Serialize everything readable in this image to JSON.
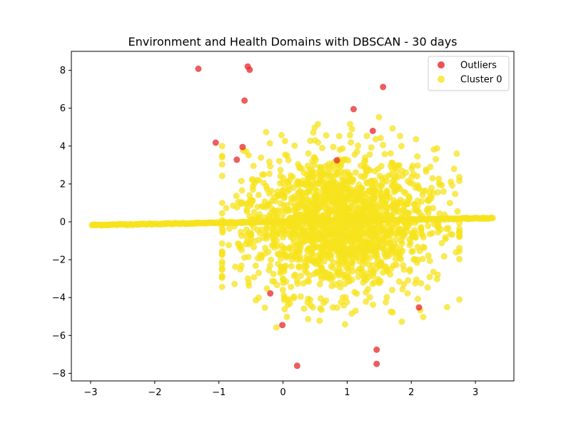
{
  "chart_data": {
    "type": "scatter",
    "title": "Environment and Health Domains with DBSCAN - 30 days",
    "xlabel": "",
    "ylabel": "",
    "xlim": [
      -3.3,
      3.6
    ],
    "ylim": [
      -8.4,
      9.0
    ],
    "x_ticks": [
      "−3",
      "−2",
      "−1",
      "0",
      "1",
      "2",
      "3"
    ],
    "x_tick_values": [
      -3,
      -2,
      -1,
      0,
      1,
      2,
      3
    ],
    "y_ticks": [
      "−8",
      "−6",
      "−4",
      "−2",
      "0",
      "2",
      "4",
      "6",
      "8"
    ],
    "y_tick_values": [
      -8,
      -6,
      -4,
      -2,
      0,
      2,
      4,
      6,
      8
    ],
    "grid": false,
    "legend_position": "top-right",
    "series": [
      {
        "name": "Outliers",
        "color": "#e8262a",
        "points": [
          [
            -1.32,
            8.08
          ],
          [
            -0.55,
            8.2
          ],
          [
            -0.52,
            8.03
          ],
          [
            1.56,
            7.12
          ],
          [
            -0.6,
            6.4
          ],
          [
            1.1,
            5.95
          ],
          [
            1.4,
            4.8
          ],
          [
            -1.05,
            4.18
          ],
          [
            -0.63,
            3.95
          ],
          [
            -0.72,
            3.28
          ],
          [
            0.84,
            3.25
          ],
          [
            -0.2,
            -3.78
          ],
          [
            2.12,
            -4.52
          ],
          [
            -0.01,
            -5.45
          ],
          [
            1.46,
            -6.75
          ],
          [
            1.46,
            -7.5
          ],
          [
            0.22,
            -7.6
          ]
        ]
      },
      {
        "name": "Cluster 0",
        "color": "#f7e31e",
        "line_segment": {
          "x_start": -2.98,
          "y_start": -0.17,
          "x_end": 3.27,
          "y_end": 0.2
        },
        "cloud": {
          "x_center": 0.85,
          "x_spread": 0.75,
          "y_center": 0.0,
          "y_spread": 1.9,
          "count": 1800
        }
      }
    ]
  }
}
